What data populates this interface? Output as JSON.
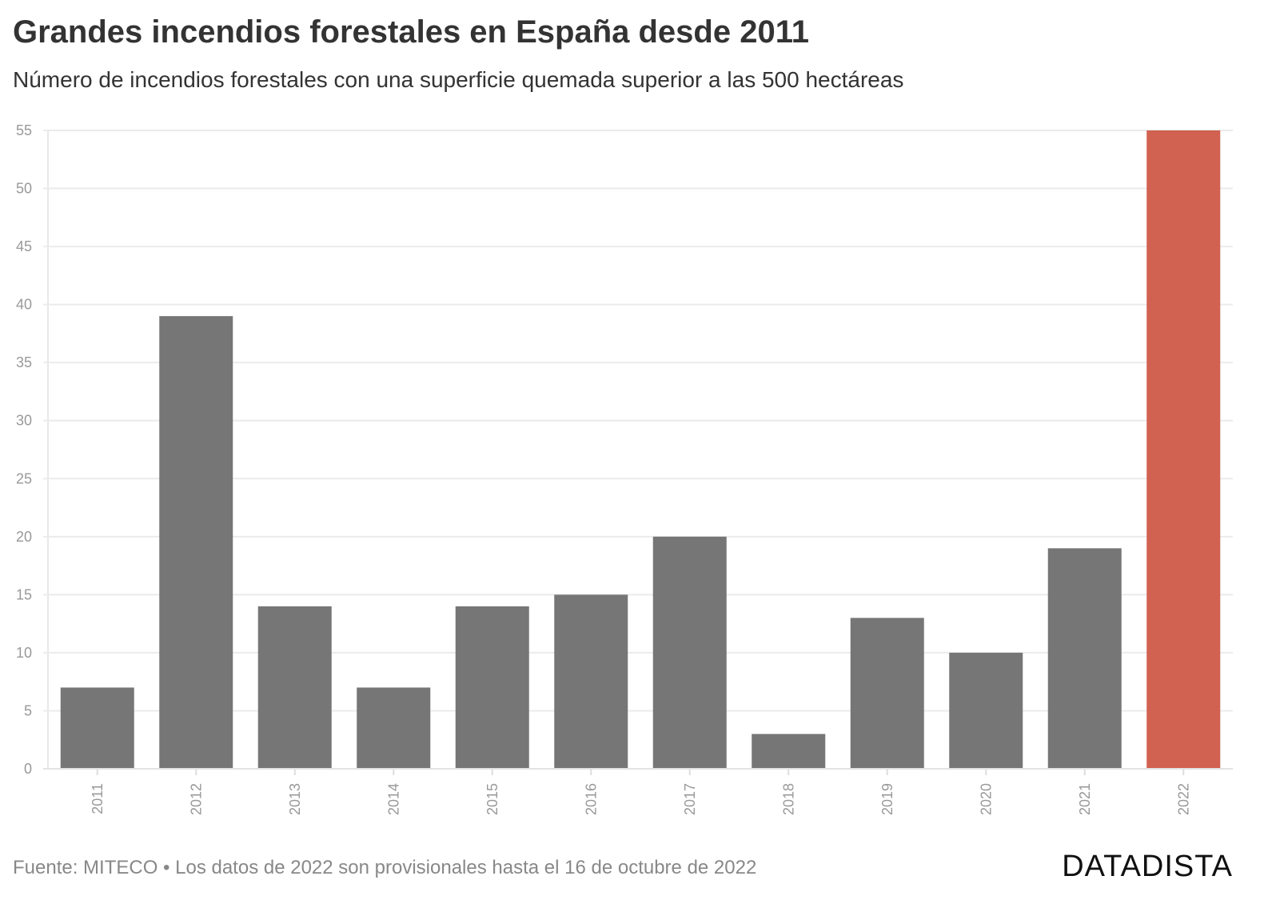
{
  "chart_data": {
    "type": "bar",
    "title": "Grandes incendios forestales en España desde 2011",
    "subtitle": "Número de incendios forestales con una superficie quemada superior a las 500 hectáreas",
    "categories": [
      "2011",
      "2012",
      "2013",
      "2014",
      "2015",
      "2016",
      "2017",
      "2018",
      "2019",
      "2020",
      "2021",
      "2022"
    ],
    "values": [
      7,
      39,
      14,
      7,
      14,
      15,
      20,
      3,
      13,
      10,
      19,
      55
    ],
    "xlabel": "",
    "ylabel": "",
    "ylim": [
      0,
      55
    ],
    "yticks": [
      0,
      5,
      10,
      15,
      20,
      25,
      30,
      35,
      40,
      45,
      50,
      55
    ],
    "grid": true,
    "bar_color": "#767676",
    "highlight_color": "#d16150",
    "highlight_category": "2022"
  },
  "footer": {
    "source": "Fuente: MITECO • Los datos de 2022 son provisionales hasta el 16 de octubre de 2022",
    "brand": "DATADISTA"
  }
}
